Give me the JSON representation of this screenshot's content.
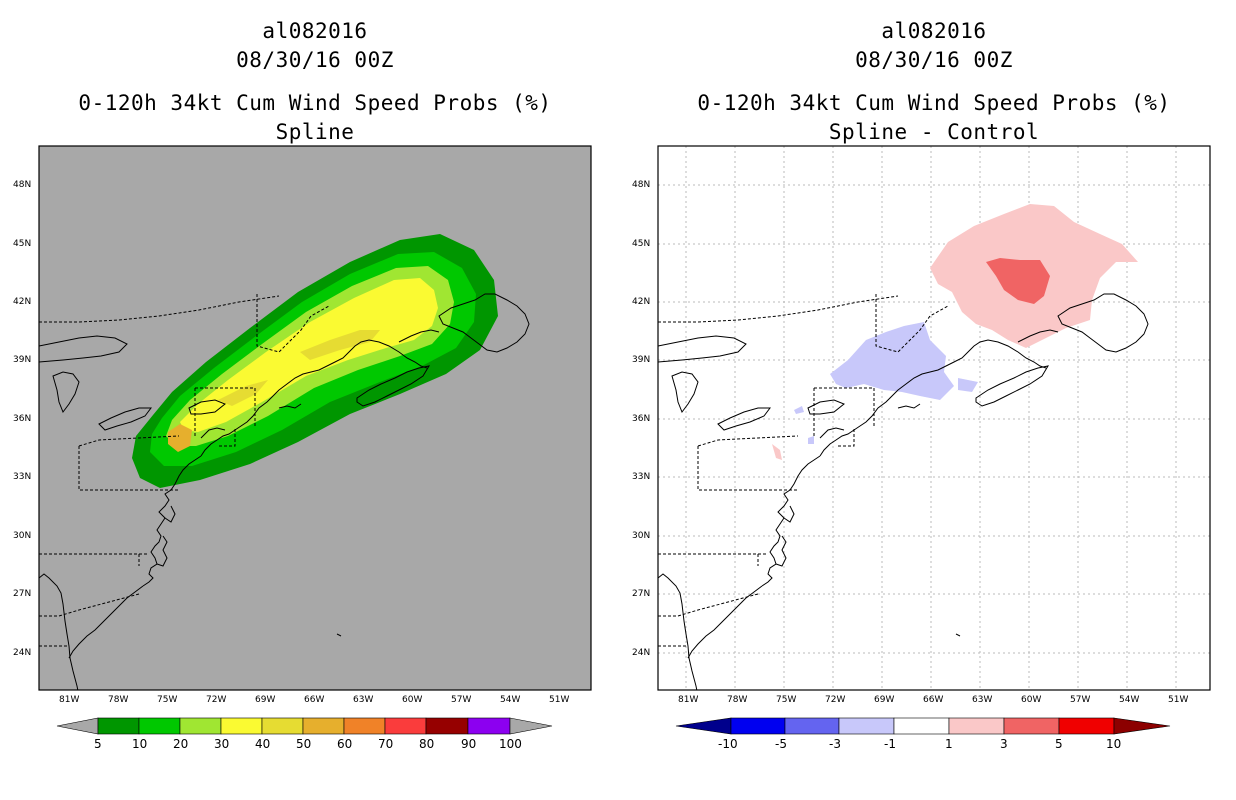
{
  "left_panel": {
    "storm_id": "al082016",
    "datetime": "08/30/16 00Z",
    "product": "0-120h 34kt Cum Wind Speed Probs (%)",
    "subtitle": "Spline",
    "background_color": "#a8a8a8",
    "lat_labels": [
      "48N",
      "45N",
      "42N",
      "39N",
      "36N",
      "33N",
      "30N",
      "27N",
      "24N"
    ],
    "lon_labels": [
      "81W",
      "78W",
      "75W",
      "72W",
      "69W",
      "66W",
      "63W",
      "60W",
      "57W",
      "54W",
      "51W"
    ],
    "colorbar": {
      "labels": [
        "5",
        "10",
        "20",
        "30",
        "40",
        "50",
        "60",
        "70",
        "80",
        "90",
        "100"
      ],
      "colors": [
        "#a8a8a8",
        "#009600",
        "#00c800",
        "#a0e632",
        "#fafa32",
        "#e6dc32",
        "#e6af2d",
        "#f08228",
        "#fa3c3c",
        "#960000",
        "#8c00f0",
        "#a8a8a8"
      ]
    }
  },
  "right_panel": {
    "storm_id": "al082016",
    "datetime": "08/30/16 00Z",
    "product": "0-120h 34kt Cum Wind Speed Probs (%)",
    "subtitle": "Spline - Control",
    "background_color": "#ffffff",
    "lat_labels": [
      "48N",
      "45N",
      "42N",
      "39N",
      "36N",
      "33N",
      "30N",
      "27N",
      "24N"
    ],
    "lon_labels": [
      "81W",
      "78W",
      "75W",
      "72W",
      "69W",
      "66W",
      "63W",
      "60W",
      "57W",
      "54W",
      "51W"
    ],
    "colorbar": {
      "labels": [
        "-10",
        "-5",
        "-3",
        "-1",
        "1",
        "3",
        "5",
        "10"
      ],
      "colors": [
        "#00008c",
        "#0000f0",
        "#6464f0",
        "#c8c8fa",
        "#ffffff",
        "#fac8c8",
        "#f06464",
        "#f00000",
        "#8c0000"
      ]
    }
  }
}
